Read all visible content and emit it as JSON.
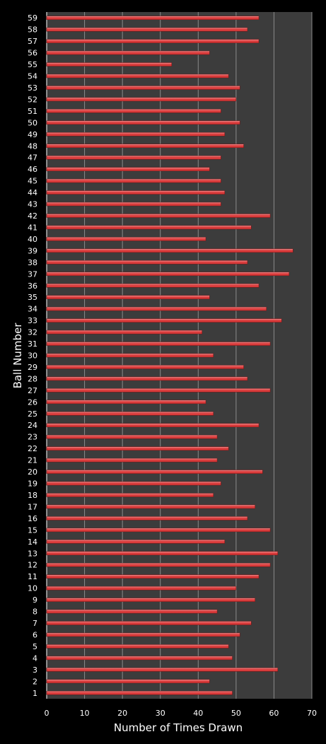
{
  "chart_data": {
    "type": "bar",
    "orientation": "horizontal",
    "xlabel": "Number of Times Drawn",
    "ylabel": "Ball Number",
    "xlim": [
      0,
      70
    ],
    "x_ticks": [
      0,
      10,
      20,
      30,
      40,
      50,
      60,
      70
    ],
    "grid": "vertical",
    "colors": {
      "background": "#000000",
      "plot_area": "#3c3c3c",
      "gridline": "#8a8a8a",
      "bar": "#d93b3b",
      "bar_highlight": "#f3a0a0",
      "text": "#ffffff"
    },
    "categories": [
      "1",
      "2",
      "3",
      "4",
      "5",
      "6",
      "7",
      "8",
      "9",
      "10",
      "11",
      "12",
      "13",
      "14",
      "15",
      "16",
      "17",
      "18",
      "19",
      "20",
      "21",
      "22",
      "23",
      "24",
      "25",
      "26",
      "27",
      "28",
      "29",
      "30",
      "31",
      "32",
      "33",
      "34",
      "35",
      "36",
      "37",
      "38",
      "39",
      "40",
      "41",
      "42",
      "43",
      "44",
      "45",
      "46",
      "47",
      "48",
      "49",
      "50",
      "51",
      "52",
      "53",
      "54",
      "55",
      "56",
      "57",
      "58",
      "59"
    ],
    "values": [
      49,
      43,
      61,
      49,
      48,
      51,
      54,
      45,
      55,
      50,
      56,
      59,
      61,
      47,
      59,
      53,
      55,
      44,
      46,
      57,
      45,
      48,
      45,
      56,
      44,
      42,
      59,
      53,
      52,
      44,
      59,
      41,
      62,
      58,
      43,
      56,
      64,
      53,
      65,
      42,
      54,
      59,
      46,
      47,
      46,
      43,
      46,
      52,
      47,
      51,
      46,
      50,
      51,
      48,
      33,
      43,
      56,
      53,
      56
    ]
  }
}
